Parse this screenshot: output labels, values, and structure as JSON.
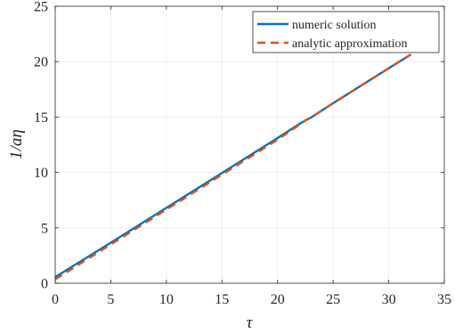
{
  "chart_data": {
    "type": "line",
    "xlabel": "τ",
    "ylabel": "1/aη",
    "xlim": [
      0,
      35
    ],
    "ylim": [
      0,
      25
    ],
    "xticks": [
      0,
      5,
      10,
      15,
      20,
      25,
      30,
      35
    ],
    "yticks": [
      0,
      5,
      10,
      15,
      20,
      25
    ],
    "grid": true,
    "legend_position": "top-right",
    "series": [
      {
        "name": "numeric solution",
        "color": "#0072BD",
        "style": "solid",
        "x": [
          0,
          5,
          10,
          15,
          20,
          22,
          22.6,
          23,
          25,
          30,
          32
        ],
        "y": [
          0.55,
          3.66,
          6.8,
          9.95,
          13.1,
          14.4,
          14.75,
          14.95,
          16.25,
          19.4,
          20.65
        ]
      },
      {
        "name": "analytic approximation",
        "color": "#D95319",
        "style": "dashed",
        "x": [
          0,
          5,
          10,
          15,
          20,
          22.6,
          23,
          25,
          30,
          32
        ],
        "y": [
          0.35,
          3.5,
          6.65,
          9.8,
          12.95,
          14.75,
          14.95,
          16.25,
          19.4,
          20.65
        ]
      }
    ]
  }
}
